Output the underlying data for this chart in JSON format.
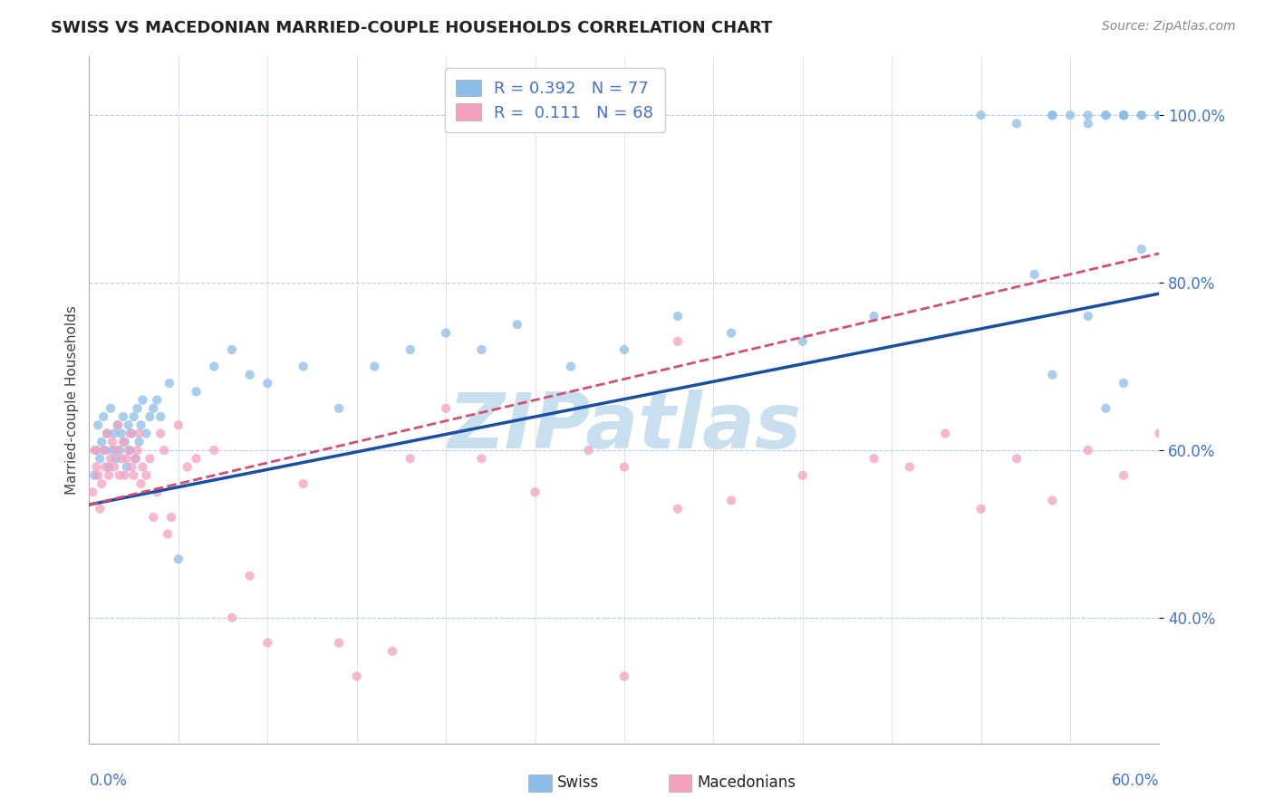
{
  "title": "SWISS VS MACEDONIAN MARRIED-COUPLE HOUSEHOLDS CORRELATION CHART",
  "source_text": "Source: ZipAtlas.com",
  "ylabel": "Married-couple Households",
  "ytick_values": [
    0.4,
    0.6,
    0.8,
    1.0
  ],
  "xlim": [
    0.0,
    0.6
  ],
  "ylim": [
    0.25,
    1.07
  ],
  "legend_label_swiss": "R = 0.392   N = 77",
  "legend_label_mac": "R =  0.111   N = 68",
  "watermark": "ZIPatlas",
  "watermark_color": "#c8dff0",
  "swiss_color": "#8bbde8",
  "macedonian_color": "#f4a0bf",
  "trendline_swiss_color": "#1a4fa0",
  "trendline_macedonian_color": "#d05070",
  "swiss_R": 0.392,
  "mac_R": 0.111,
  "swiss_intercept": 0.535,
  "swiss_slope": 0.42,
  "mac_intercept": 0.535,
  "mac_slope": 0.5,
  "swiss_x": [
    0.003,
    0.004,
    0.005,
    0.006,
    0.007,
    0.008,
    0.009,
    0.01,
    0.011,
    0.012,
    0.013,
    0.014,
    0.015,
    0.016,
    0.017,
    0.018,
    0.019,
    0.02,
    0.021,
    0.022,
    0.023,
    0.024,
    0.025,
    0.026,
    0.027,
    0.028,
    0.029,
    0.03,
    0.032,
    0.034,
    0.036,
    0.038,
    0.04,
    0.045,
    0.05,
    0.06,
    0.07,
    0.08,
    0.09,
    0.1,
    0.12,
    0.14,
    0.16,
    0.18,
    0.2,
    0.22,
    0.24,
    0.27,
    0.3,
    0.33,
    0.36,
    0.4,
    0.44,
    0.5,
    0.52,
    0.54,
    0.56,
    0.58,
    0.53,
    0.54,
    0.56,
    0.57,
    0.58,
    0.59,
    0.6,
    0.58,
    0.6,
    0.59,
    0.57,
    0.55,
    0.54,
    0.56,
    0.58,
    0.6,
    0.59,
    0.58,
    0.57
  ],
  "swiss_y": [
    0.57,
    0.6,
    0.63,
    0.59,
    0.61,
    0.64,
    0.6,
    0.62,
    0.58,
    0.65,
    0.6,
    0.62,
    0.59,
    0.63,
    0.6,
    0.62,
    0.64,
    0.61,
    0.58,
    0.63,
    0.6,
    0.62,
    0.64,
    0.59,
    0.65,
    0.61,
    0.63,
    0.66,
    0.62,
    0.64,
    0.65,
    0.66,
    0.64,
    0.68,
    0.47,
    0.67,
    0.7,
    0.72,
    0.69,
    0.68,
    0.7,
    0.65,
    0.7,
    0.72,
    0.74,
    0.72,
    0.75,
    0.7,
    0.72,
    0.76,
    0.74,
    0.73,
    0.76,
    1.0,
    0.99,
    1.0,
    0.99,
    1.0,
    0.81,
    0.69,
    0.76,
    0.65,
    0.68,
    0.84,
    1.0,
    1.0,
    1.0,
    1.0,
    1.0,
    1.0,
    1.0,
    1.0,
    1.0,
    1.0,
    1.0,
    1.0,
    1.0
  ],
  "macedonian_x": [
    0.002,
    0.003,
    0.004,
    0.005,
    0.006,
    0.007,
    0.008,
    0.009,
    0.01,
    0.011,
    0.012,
    0.013,
    0.014,
    0.015,
    0.016,
    0.017,
    0.018,
    0.019,
    0.02,
    0.021,
    0.022,
    0.023,
    0.024,
    0.025,
    0.026,
    0.027,
    0.028,
    0.029,
    0.03,
    0.032,
    0.034,
    0.036,
    0.038,
    0.04,
    0.042,
    0.044,
    0.046,
    0.05,
    0.055,
    0.06,
    0.07,
    0.08,
    0.09,
    0.1,
    0.12,
    0.14,
    0.15,
    0.17,
    0.22,
    0.25,
    0.28,
    0.3,
    0.33,
    0.36,
    0.4,
    0.44,
    0.46,
    0.48,
    0.5,
    0.52,
    0.54,
    0.56,
    0.58,
    0.6,
    0.33,
    0.2,
    0.18,
    0.3
  ],
  "macedonian_y": [
    0.55,
    0.6,
    0.58,
    0.57,
    0.53,
    0.56,
    0.6,
    0.58,
    0.62,
    0.57,
    0.59,
    0.61,
    0.58,
    0.6,
    0.63,
    0.57,
    0.59,
    0.61,
    0.57,
    0.59,
    0.6,
    0.62,
    0.58,
    0.57,
    0.59,
    0.6,
    0.62,
    0.56,
    0.58,
    0.57,
    0.59,
    0.52,
    0.55,
    0.62,
    0.6,
    0.5,
    0.52,
    0.63,
    0.58,
    0.59,
    0.6,
    0.4,
    0.45,
    0.37,
    0.56,
    0.37,
    0.33,
    0.36,
    0.59,
    0.55,
    0.6,
    0.58,
    0.53,
    0.54,
    0.57,
    0.59,
    0.58,
    0.62,
    0.53,
    0.59,
    0.54,
    0.6,
    0.57,
    0.62,
    0.73,
    0.65,
    0.59,
    0.33
  ]
}
